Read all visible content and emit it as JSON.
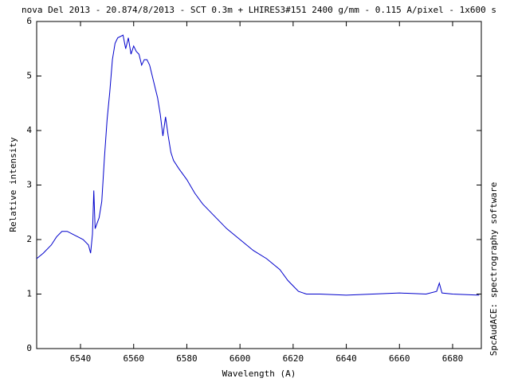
{
  "chart_data": {
    "type": "line",
    "title": "nova Del 2013 - 20.874/8/2013 - SCT 0.3m + LHIRES3#151 2400 g/mm - 0.115 A/pixel - 1x600 s",
    "x_label": "Wavelength (A)",
    "y_label": "Relative intensity",
    "side_note": "SpcAudACE: spectrography software",
    "xlim": [
      6523.5,
      6690.8
    ],
    "ylim": [
      0,
      6
    ],
    "xticks": [
      6540,
      6560,
      6580,
      6600,
      6620,
      6640,
      6660,
      6680
    ],
    "yticks": [
      0,
      1,
      2,
      3,
      4,
      5,
      6
    ],
    "series": [
      {
        "name": "spectrum",
        "color": "#0000cc",
        "x": [
          6523.5,
          6526,
          6529,
          6531,
          6533,
          6535,
          6537,
          6539,
          6541,
          6543,
          6543.8,
          6544.5,
          6545,
          6545.5,
          6547,
          6548,
          6549,
          6550,
          6551,
          6552,
          6553,
          6554,
          6556,
          6557,
          6558,
          6559,
          6560,
          6561,
          6562,
          6563,
          6564,
          6565,
          6566,
          6567,
          6568,
          6569,
          6570,
          6571,
          6572,
          6573,
          6574,
          6575,
          6577,
          6580,
          6583,
          6586,
          6590,
          6595,
          6600,
          6605,
          6610,
          6615,
          6618,
          6620,
          6622,
          6625,
          6630,
          6640,
          6650,
          6660,
          6670,
          6674,
          6675,
          6676,
          6680,
          6690
        ],
        "values": [
          1.65,
          1.75,
          1.9,
          2.05,
          2.15,
          2.15,
          2.1,
          2.05,
          2.0,
          1.9,
          1.75,
          2.1,
          2.9,
          2.2,
          2.4,
          2.7,
          3.5,
          4.2,
          4.7,
          5.3,
          5.6,
          5.7,
          5.75,
          5.5,
          5.7,
          5.4,
          5.55,
          5.45,
          5.4,
          5.2,
          5.3,
          5.3,
          5.2,
          5.0,
          4.8,
          4.6,
          4.3,
          3.9,
          4.25,
          3.9,
          3.6,
          3.45,
          3.3,
          3.1,
          2.85,
          2.65,
          2.45,
          2.2,
          2.0,
          1.8,
          1.65,
          1.45,
          1.25,
          1.15,
          1.05,
          1.0,
          1.0,
          0.98,
          1.0,
          1.02,
          1.0,
          1.05,
          1.2,
          1.02,
          1.0,
          0.98
        ]
      }
    ]
  }
}
